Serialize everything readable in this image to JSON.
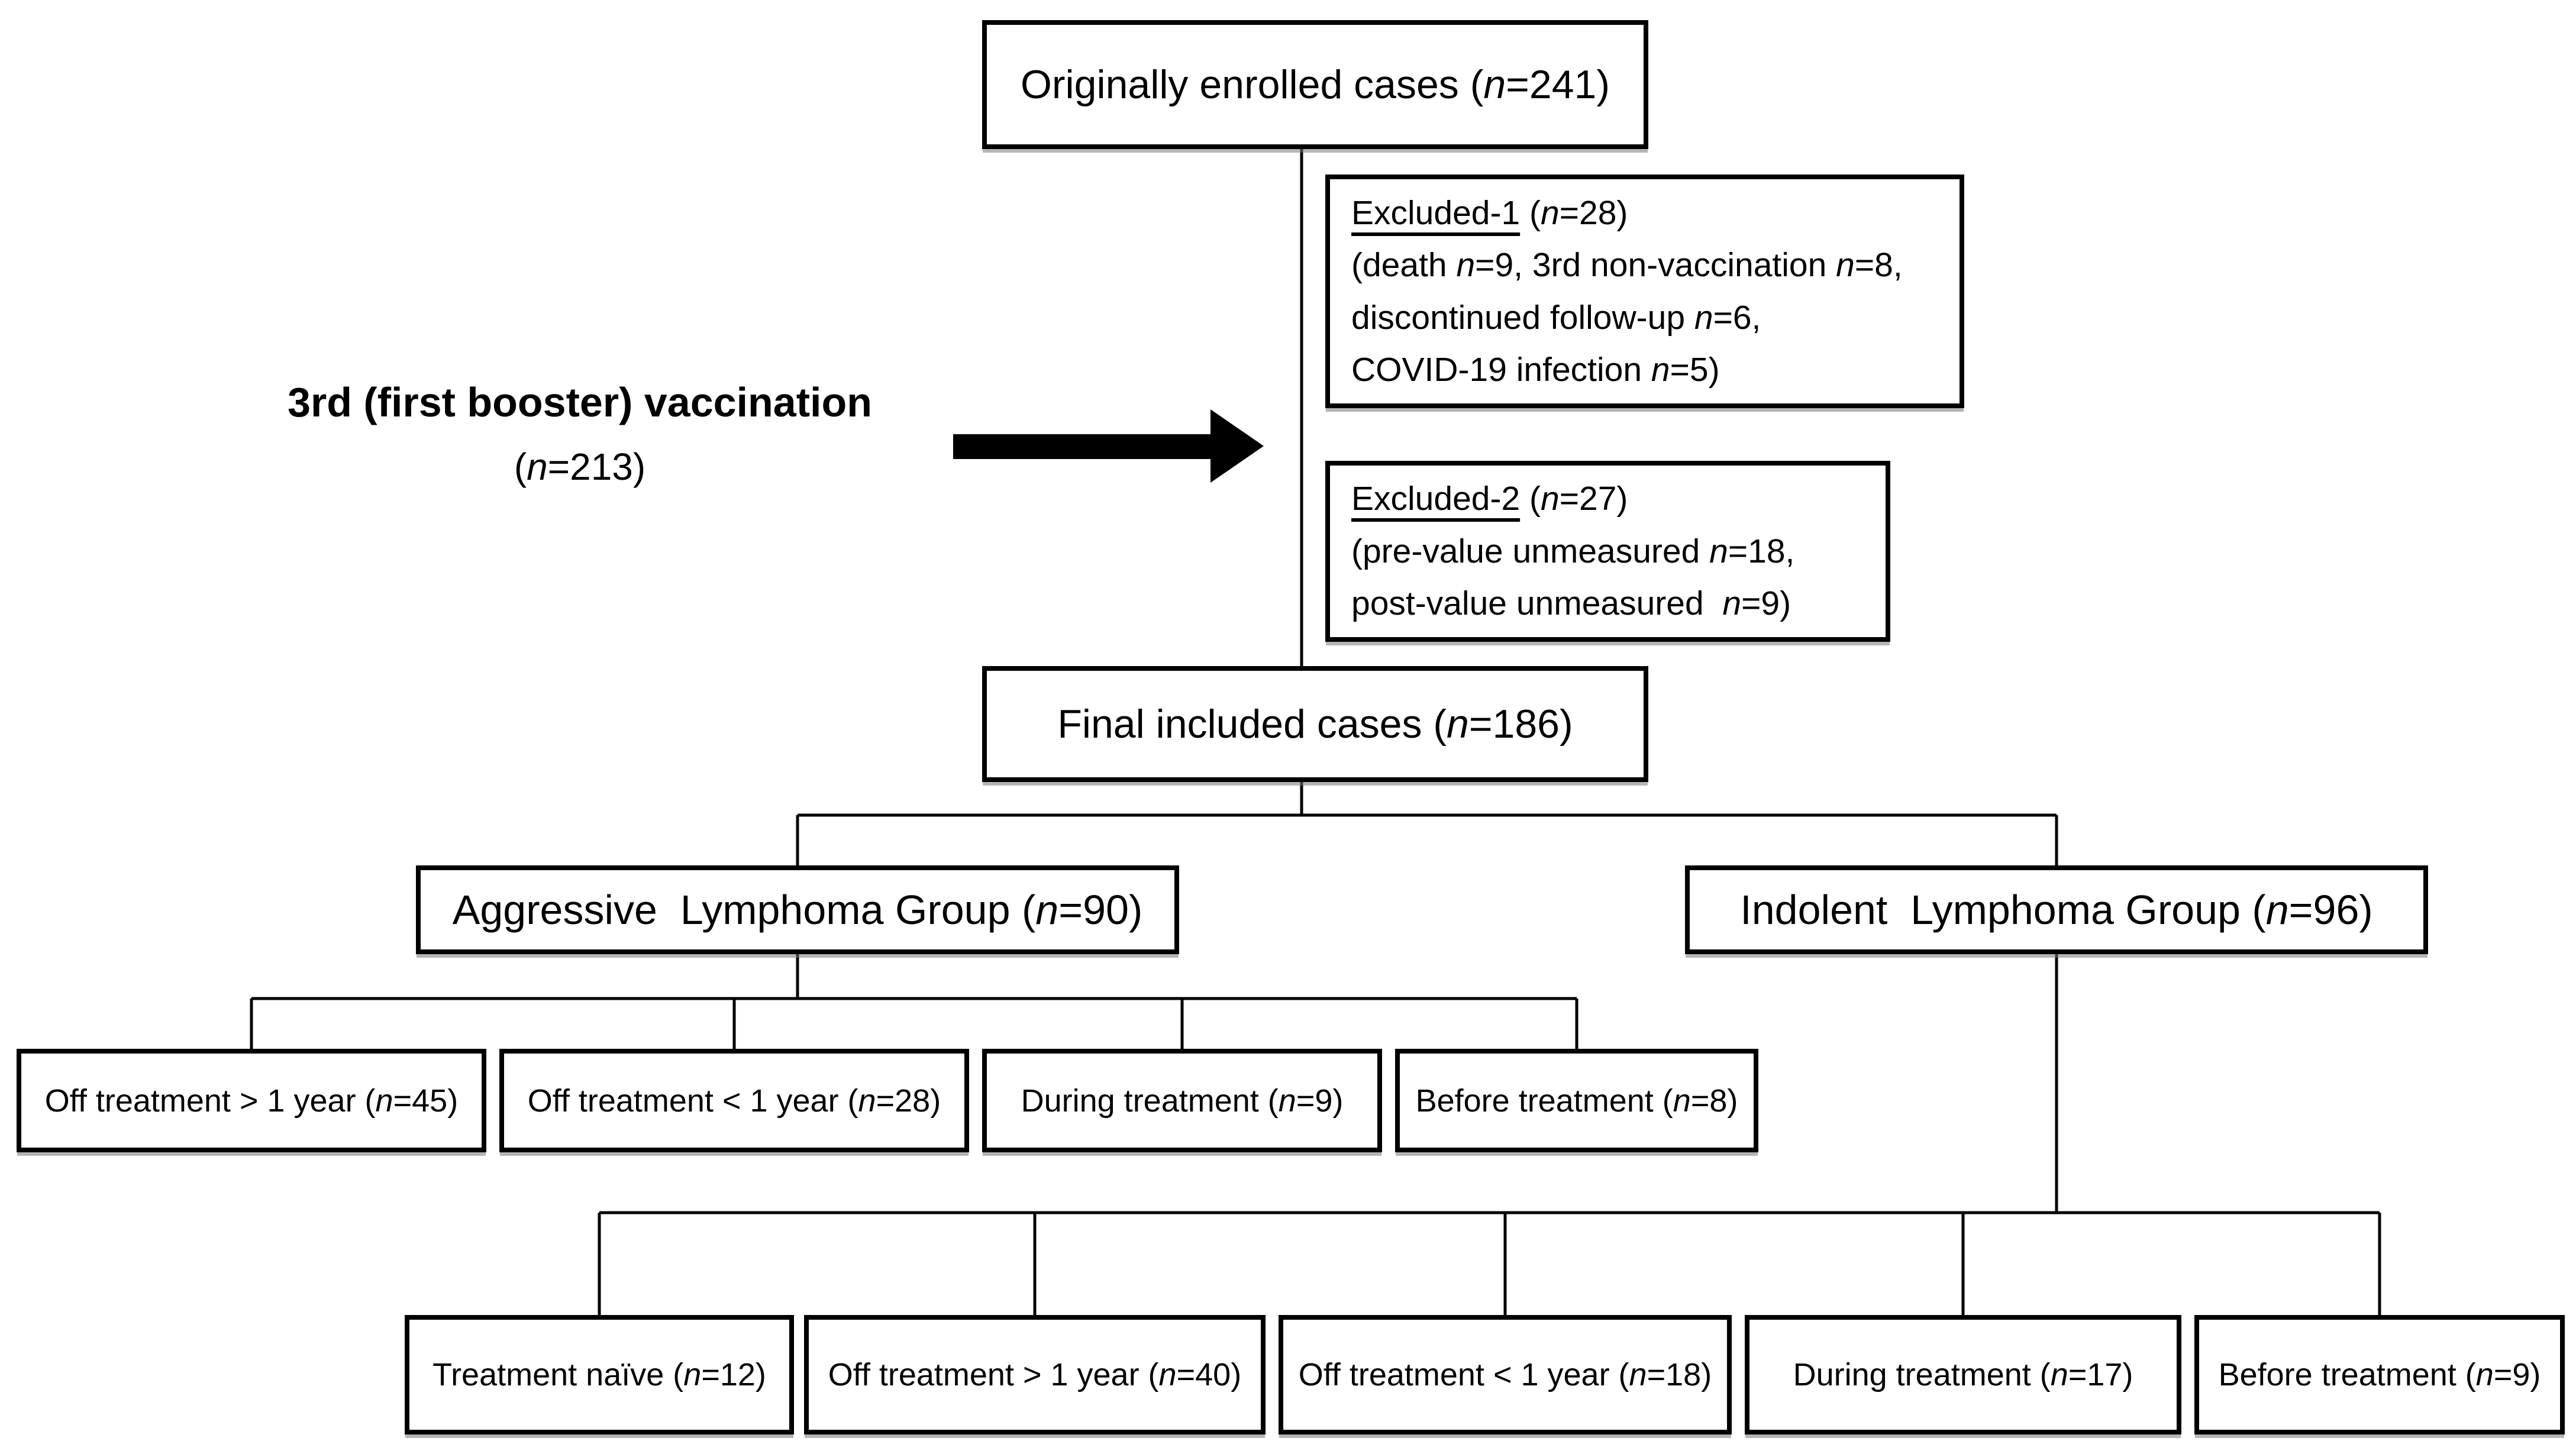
{
  "figure": {
    "background": "#ffffff",
    "text_color": "#000000",
    "line_color": "#000000"
  },
  "boxes": {
    "originally_enrolled": "Originally enrolled cases (n=241)",
    "final_included": "Final included cases (n=186)",
    "aggressive_group": "Aggressive  Lymphoma Group (n=90)",
    "indolent_group": "Indolent  Lymphoma Group (n=96)"
  },
  "excluded1": {
    "title": "Excluded-1",
    "count": " (n=28)",
    "lines": [
      "(death n=9, 3rd non-vaccination n=8,",
      "discontinued follow-up n=6,",
      "COVID-19 infection n=5)"
    ]
  },
  "excluded2": {
    "title": "Excluded-2",
    "count": " (n=27)",
    "lines": [
      "(pre-value unmeasured n=18,",
      "post-value unmeasured  n=9)"
    ]
  },
  "vaccination_label": {
    "line1": "3rd (first booster) vaccination",
    "line2": "(n=213)"
  },
  "aggressive_subgroups": [
    "Off treatment > 1 year (n=45)",
    "Off treatment < 1 year (n=28)",
    "During treatment (n=9)",
    "Before treatment (n=8)"
  ],
  "indolent_subgroups": [
    "Treatment naïve (n=12)",
    "Off treatment > 1 year (n=40)",
    "Off treatment < 1 year (n=18)",
    "During treatment (n=17)",
    "Before treatment (n=9)"
  ]
}
